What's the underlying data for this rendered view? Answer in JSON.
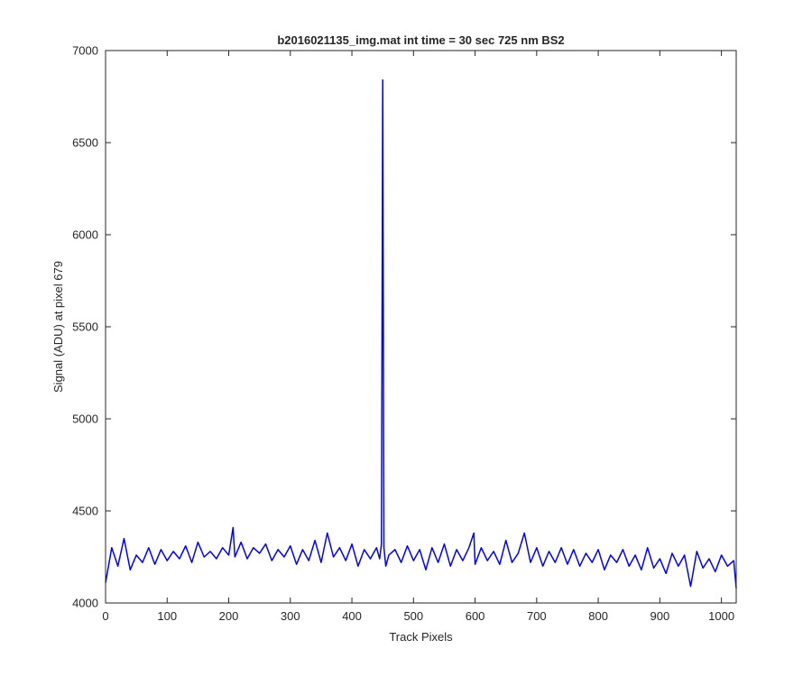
{
  "chart_data": {
    "type": "line",
    "title": "b2016021135_img.mat int time = 30 sec  725 nm BS2",
    "xlabel": "Track Pixels",
    "ylabel": "Signal (ADU) at pixel 679",
    "xlim": [
      0,
      1024
    ],
    "ylim": [
      4000,
      7000
    ],
    "xticks": [
      0,
      100,
      200,
      300,
      400,
      500,
      600,
      700,
      800,
      900,
      1000
    ],
    "yticks": [
      4000,
      4500,
      5000,
      5500,
      6000,
      6500,
      7000
    ],
    "grid": false,
    "legend": "none",
    "series_color": "#0000ff",
    "series": [
      {
        "x": [
          0,
          10,
          20,
          30,
          40,
          50,
          60,
          70,
          80,
          90,
          100,
          110,
          120,
          130,
          140,
          150,
          160,
          170,
          180,
          190,
          200,
          207,
          210,
          220,
          230,
          240,
          250,
          260,
          270,
          280,
          290,
          300,
          310,
          320,
          330,
          340,
          350,
          360,
          370,
          380,
          390,
          400,
          410,
          420,
          430,
          440,
          445,
          448,
          450,
          452,
          455,
          460,
          470,
          480,
          490,
          500,
          510,
          520,
          530,
          540,
          550,
          560,
          570,
          580,
          590,
          598,
          600,
          610,
          620,
          630,
          640,
          650,
          660,
          670,
          680,
          690,
          700,
          710,
          720,
          730,
          740,
          750,
          760,
          770,
          780,
          790,
          800,
          810,
          820,
          830,
          840,
          850,
          860,
          870,
          880,
          890,
          900,
          910,
          920,
          930,
          940,
          950,
          960,
          970,
          980,
          990,
          1000,
          1010,
          1020,
          1024
        ],
        "y": [
          4110,
          4300,
          4200,
          4350,
          4180,
          4260,
          4220,
          4300,
          4210,
          4290,
          4230,
          4280,
          4240,
          4310,
          4220,
          4330,
          4250,
          4280,
          4240,
          4300,
          4260,
          4410,
          4250,
          4330,
          4240,
          4300,
          4270,
          4320,
          4230,
          4290,
          4250,
          4310,
          4210,
          4290,
          4230,
          4340,
          4220,
          4380,
          4250,
          4300,
          4230,
          4320,
          4200,
          4290,
          4240,
          4300,
          4240,
          4320,
          6840,
          4300,
          4200,
          4260,
          4290,
          4220,
          4310,
          4230,
          4290,
          4180,
          4300,
          4220,
          4320,
          4200,
          4290,
          4230,
          4300,
          4380,
          4210,
          4300,
          4230,
          4280,
          4210,
          4340,
          4220,
          4270,
          4380,
          4220,
          4300,
          4200,
          4280,
          4220,
          4300,
          4210,
          4290,
          4200,
          4270,
          4220,
          4290,
          4180,
          4260,
          4220,
          4290,
          4200,
          4260,
          4180,
          4300,
          4190,
          4240,
          4160,
          4270,
          4200,
          4260,
          4090,
          4280,
          4190,
          4240,
          4170,
          4260,
          4200,
          4230,
          4080
        ]
      }
    ]
  }
}
